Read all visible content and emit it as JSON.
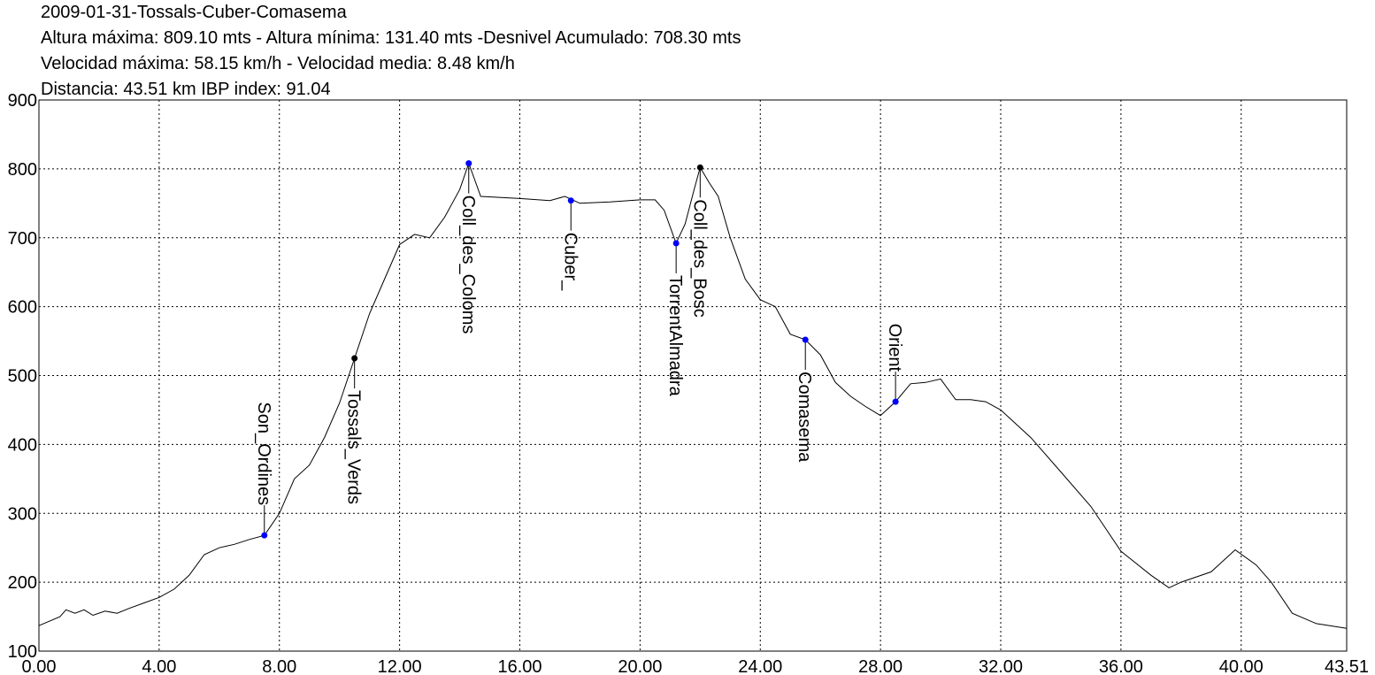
{
  "chart_data": {
    "type": "line",
    "title": "2009-01-31-Tossals-Cuber-Comasema",
    "subtitles": [
      "Altura máxima: 809.10 mts - Altura mínima: 131.40 mts -Desnivel Acumulado: 708.30 mts",
      "Velocidad máxima: 58.15 km/h - Velocidad media: 8.48 km/h",
      "Distancia: 43.51 km IBP index: 91.04"
    ],
    "x": [
      0,
      0.7,
      0.9,
      1.2,
      1.5,
      1.8,
      2.2,
      2.6,
      3.0,
      3.5,
      4.0,
      4.5,
      5.0,
      5.5,
      6.0,
      6.5,
      7.0,
      7.5,
      8.0,
      8.5,
      9.0,
      9.5,
      10.0,
      10.5,
      11.0,
      11.5,
      12.0,
      12.5,
      13.0,
      13.5,
      14.0,
      14.3,
      14.7,
      16.0,
      17.0,
      17.5,
      18.0,
      19.0,
      20.0,
      20.5,
      20.8,
      21.2,
      21.5,
      21.8,
      22.0,
      22.3,
      22.6,
      23.0,
      23.5,
      24.0,
      24.5,
      25.0,
      25.5,
      26.0,
      26.5,
      27.0,
      27.5,
      28.0,
      28.5,
      29.0,
      29.5,
      30.0,
      30.5,
      31.0,
      31.5,
      32.0,
      33.0,
      34.0,
      35.0,
      36.0,
      37.0,
      37.6,
      38.0,
      39.0,
      39.8,
      40.5,
      41.0,
      41.7,
      42.5,
      43.51
    ],
    "series": [
      {
        "color": "#000000",
        "values": [
          137,
          150,
          160,
          155,
          160,
          152,
          158,
          155,
          162,
          170,
          178,
          190,
          210,
          240,
          250,
          255,
          262,
          268,
          300,
          350,
          370,
          410,
          460,
          525,
          590,
          640,
          690,
          705,
          700,
          730,
          770,
          808,
          760,
          757,
          754,
          760,
          750,
          752,
          755,
          755,
          740,
          692,
          720,
          770,
          802,
          780,
          760,
          700,
          640,
          610,
          600,
          560,
          552,
          530,
          490,
          470,
          455,
          442,
          462,
          488,
          490,
          495,
          465,
          465,
          462,
          450,
          410,
          360,
          310,
          245,
          210,
          192,
          200,
          215,
          247,
          225,
          200,
          155,
          140,
          133
        ]
      }
    ],
    "annotations": [
      {
        "label": "Son_Ordines",
        "x": 7.5,
        "y": 268,
        "position": "above",
        "color": "#0000ff"
      },
      {
        "label": "Tossals_Verds",
        "x": 10.5,
        "y": 525,
        "position": "below",
        "color": "#000000"
      },
      {
        "label": "Coll_des_Coloms",
        "x": 14.3,
        "y": 808,
        "position": "below",
        "color": "#0000ff"
      },
      {
        "label": "Cuber_",
        "x": 17.7,
        "y": 754,
        "position": "below",
        "color": "#0000ff"
      },
      {
        "label": "TorrentAlmadra",
        "x": 21.2,
        "y": 692,
        "position": "below",
        "color": "#0000ff"
      },
      {
        "label": "Coll_des_Bosc",
        "x": 22.0,
        "y": 802,
        "position": "below",
        "color": "#000000"
      },
      {
        "label": "Comasema",
        "x": 25.5,
        "y": 552,
        "position": "below",
        "color": "#0000ff"
      },
      {
        "label": "Orient",
        "x": 28.5,
        "y": 462,
        "position": "above",
        "color": "#0000ff"
      }
    ],
    "xlim": [
      0,
      43.51
    ],
    "xticks": [
      {
        "value": 0,
        "label": "0.00"
      },
      {
        "value": 4,
        "label": "4.00"
      },
      {
        "value": 8,
        "label": "8.00"
      },
      {
        "value": 12,
        "label": "12.00"
      },
      {
        "value": 16,
        "label": "16.00"
      },
      {
        "value": 20,
        "label": "20.00"
      },
      {
        "value": 24,
        "label": "24.00"
      },
      {
        "value": 28,
        "label": "28.00"
      },
      {
        "value": 32,
        "label": "32.00"
      },
      {
        "value": 36,
        "label": "36.00"
      },
      {
        "value": 40,
        "label": "40.00"
      },
      {
        "value": 43.51,
        "label": "43.51"
      }
    ],
    "ylim": [
      100,
      900
    ],
    "yticks": [
      100,
      200,
      300,
      400,
      500,
      600,
      700,
      800,
      900
    ],
    "grid": true
  }
}
